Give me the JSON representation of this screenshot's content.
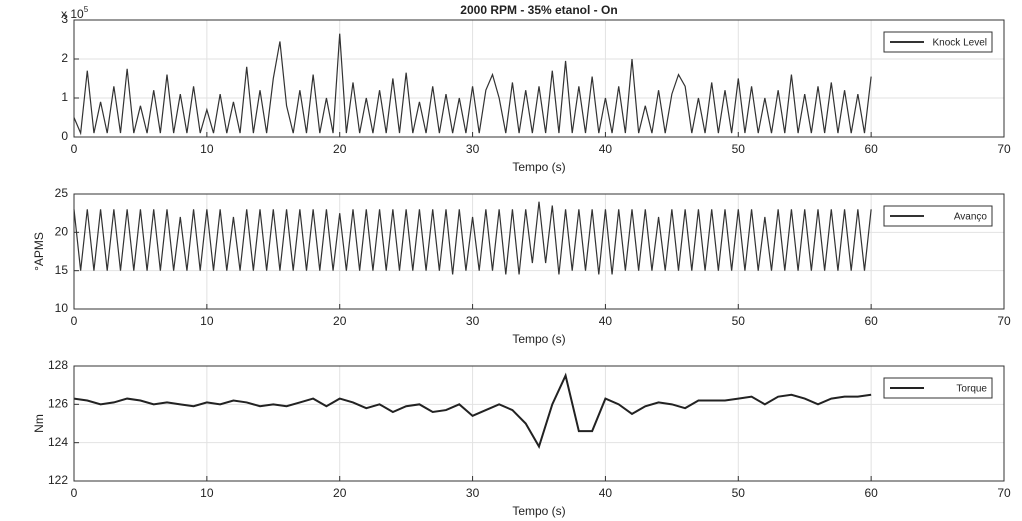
{
  "chart_data": [
    {
      "type": "line",
      "title": "2000 RPM - 35% etanol - On",
      "xlabel": "Tempo (s)",
      "y_scale_label": {
        "base": "x 10",
        "exponent": "5"
      },
      "xlim": [
        0,
        70
      ],
      "xticks": [
        0,
        10,
        20,
        30,
        40,
        50,
        60,
        70
      ],
      "ylim": [
        0,
        3
      ],
      "yticks": [
        0,
        1,
        2,
        3
      ],
      "grid": true,
      "legend": "upper right",
      "x": [
        0,
        0.5,
        1,
        1.5,
        2,
        2.5,
        3,
        3.5,
        4,
        4.5,
        5,
        5.5,
        6,
        6.5,
        7,
        7.5,
        8,
        8.5,
        9,
        9.5,
        10,
        10.5,
        11,
        11.5,
        12,
        12.5,
        13,
        13.5,
        14,
        14.5,
        15,
        15.5,
        16,
        16.5,
        17,
        17.5,
        18,
        18.5,
        19,
        19.5,
        20,
        20.5,
        21,
        21.5,
        22,
        22.5,
        23,
        23.5,
        24,
        24.5,
        25,
        25.5,
        26,
        26.5,
        27,
        27.5,
        28,
        28.5,
        29,
        29.5,
        30,
        30.5,
        31,
        31.5,
        32,
        32.5,
        33,
        33.5,
        34,
        34.5,
        35,
        35.5,
        36,
        36.5,
        37,
        37.5,
        38,
        38.5,
        39,
        39.5,
        40,
        40.5,
        41,
        41.5,
        42,
        42.5,
        43,
        43.5,
        44,
        44.5,
        45,
        45.5,
        46,
        46.5,
        47,
        47.5,
        48,
        48.5,
        49,
        49.5,
        50,
        50.5,
        51,
        51.5,
        52,
        52.5,
        53,
        53.5,
        54,
        54.5,
        55,
        55.5,
        56,
        56.5,
        57,
        57.5,
        58,
        58.5,
        59,
        59.5,
        60
      ],
      "series": [
        {
          "name": "Knock Level",
          "color": "#333333",
          "values": [
            0.5,
            0.1,
            1.7,
            0.1,
            0.9,
            0.1,
            1.3,
            0.1,
            1.75,
            0.1,
            0.8,
            0.1,
            1.2,
            0.1,
            1.6,
            0.1,
            1.1,
            0.1,
            1.3,
            0.1,
            0.7,
            0.1,
            1.1,
            0.1,
            0.9,
            0.1,
            1.8,
            0.1,
            1.2,
            0.1,
            1.5,
            2.45,
            0.8,
            0.1,
            1.2,
            0.1,
            1.6,
            0.1,
            1.0,
            0.1,
            2.65,
            0.1,
            1.4,
            0.1,
            1.0,
            0.1,
            1.2,
            0.1,
            1.5,
            0.1,
            1.65,
            0.1,
            0.9,
            0.1,
            1.3,
            0.1,
            1.1,
            0.1,
            1.0,
            0.1,
            1.3,
            0.1,
            1.2,
            1.6,
            1.0,
            0.1,
            1.4,
            0.1,
            1.2,
            0.1,
            1.3,
            0.1,
            1.7,
            0.1,
            1.95,
            0.1,
            1.3,
            0.1,
            1.55,
            0.1,
            1.0,
            0.1,
            1.3,
            0.1,
            2.0,
            0.1,
            0.8,
            0.1,
            1.2,
            0.1,
            1.1,
            1.6,
            1.3,
            0.1,
            1.0,
            0.1,
            1.4,
            0.1,
            1.2,
            0.1,
            1.5,
            0.1,
            1.3,
            0.1,
            1.0,
            0.1,
            1.2,
            0.1,
            1.6,
            0.1,
            1.1,
            0.1,
            1.3,
            0.1,
            1.4,
            0.1,
            1.2,
            0.1,
            1.1,
            0.1,
            1.55
          ]
        }
      ]
    },
    {
      "type": "line",
      "xlabel": "Tempo (s)",
      "ylabel": "°APMS",
      "xlim": [
        0,
        70
      ],
      "xticks": [
        0,
        10,
        20,
        30,
        40,
        50,
        60,
        70
      ],
      "ylim": [
        10,
        25
      ],
      "yticks": [
        10,
        15,
        20,
        25
      ],
      "grid": true,
      "legend": "upper right",
      "x": [
        0,
        0.5,
        1,
        1.5,
        2,
        2.5,
        3,
        3.5,
        4,
        4.5,
        5,
        5.5,
        6,
        6.5,
        7,
        7.5,
        8,
        8.5,
        9,
        9.5,
        10,
        10.5,
        11,
        11.5,
        12,
        12.5,
        13,
        13.5,
        14,
        14.5,
        15,
        15.5,
        16,
        16.5,
        17,
        17.5,
        18,
        18.5,
        19,
        19.5,
        20,
        20.5,
        21,
        21.5,
        22,
        22.5,
        23,
        23.5,
        24,
        24.5,
        25,
        25.5,
        26,
        26.5,
        27,
        27.5,
        28,
        28.5,
        29,
        29.5,
        30,
        30.5,
        31,
        31.5,
        32,
        32.5,
        33,
        33.5,
        34,
        34.5,
        35,
        35.5,
        36,
        36.5,
        37,
        37.5,
        38,
        38.5,
        39,
        39.5,
        40,
        40.5,
        41,
        41.5,
        42,
        42.5,
        43,
        43.5,
        44,
        44.5,
        45,
        45.5,
        46,
        46.5,
        47,
        47.5,
        48,
        48.5,
        49,
        49.5,
        50,
        50.5,
        51,
        51.5,
        52,
        52.5,
        53,
        53.5,
        54,
        54.5,
        55,
        55.5,
        56,
        56.5,
        57,
        57.5,
        58,
        58.5,
        59,
        59.5,
        60
      ],
      "series": [
        {
          "name": "Avanço",
          "color": "#333333",
          "values": [
            23,
            15,
            23,
            15,
            23,
            15,
            23,
            15,
            23,
            15,
            23,
            15,
            23,
            15,
            23,
            15,
            22,
            15,
            23,
            15,
            23,
            15,
            23,
            15,
            22,
            15,
            23,
            15,
            23,
            15,
            23,
            15,
            23,
            15,
            23,
            15,
            23,
            15,
            23,
            15,
            22.5,
            15,
            23,
            15,
            23,
            15,
            23,
            15,
            23,
            15,
            23,
            15,
            23,
            15,
            23,
            15,
            23,
            14.5,
            23,
            15,
            22,
            15,
            23,
            15,
            23,
            14.5,
            23,
            14.5,
            23,
            16,
            24,
            16,
            23.5,
            14.5,
            23,
            15,
            23,
            15,
            23,
            14.5,
            23,
            14.5,
            23,
            15,
            23,
            15,
            23,
            15,
            22,
            15,
            23,
            15,
            23,
            15,
            23,
            15,
            23,
            15,
            23,
            15,
            23,
            15,
            23,
            15,
            22,
            15,
            23,
            15,
            23,
            15,
            23,
            15,
            23,
            15,
            23,
            15,
            23,
            15,
            23,
            15,
            23
          ]
        }
      ]
    },
    {
      "type": "line",
      "xlabel": "Tempo (s)",
      "ylabel": "Nm",
      "xlim": [
        0,
        70
      ],
      "xticks": [
        0,
        10,
        20,
        30,
        40,
        50,
        60,
        70
      ],
      "ylim": [
        122,
        128
      ],
      "yticks": [
        122,
        124,
        126,
        128
      ],
      "grid": true,
      "legend": "upper right",
      "x": [
        0,
        1,
        2,
        3,
        4,
        5,
        6,
        7,
        8,
        9,
        10,
        11,
        12,
        13,
        14,
        15,
        16,
        17,
        18,
        19,
        20,
        21,
        22,
        23,
        24,
        25,
        26,
        27,
        28,
        29,
        30,
        31,
        32,
        33,
        34,
        35,
        36,
        37,
        38,
        39,
        40,
        41,
        42,
        43,
        44,
        45,
        46,
        47,
        48,
        49,
        50,
        51,
        52,
        53,
        54,
        55,
        56,
        57,
        58,
        59,
        60
      ],
      "series": [
        {
          "name": "Torque",
          "color": "#222222",
          "values": [
            126.3,
            126.2,
            126.0,
            126.1,
            126.3,
            126.2,
            126.0,
            126.1,
            126.0,
            125.9,
            126.1,
            126.0,
            126.2,
            126.1,
            125.9,
            126.0,
            125.9,
            126.1,
            126.3,
            125.9,
            126.3,
            126.1,
            125.8,
            126.0,
            125.6,
            125.9,
            126.0,
            125.6,
            125.7,
            126.0,
            125.4,
            125.7,
            126.0,
            125.7,
            125.0,
            123.8,
            126.0,
            127.5,
            124.6,
            124.6,
            126.3,
            126.0,
            125.5,
            125.9,
            126.1,
            126.0,
            125.8,
            126.2,
            126.2,
            126.2,
            126.3,
            126.4,
            126.0,
            126.4,
            126.5,
            126.3,
            126.0,
            126.3,
            126.4,
            126.4,
            126.5
          ]
        }
      ]
    }
  ]
}
